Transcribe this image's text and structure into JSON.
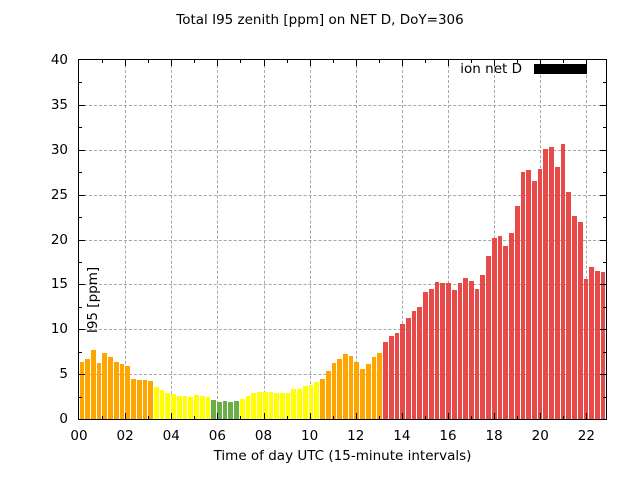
{
  "title": "Total I95 zenith [ppm] on NET D, DoY=306",
  "legend": {
    "label": "ion net D",
    "swatch_color": "#000000"
  },
  "axes": {
    "xlabel": "Time of day UTC (15-minute intervals)",
    "ylabel": "I95 [ppm]",
    "x_tick_labels": [
      "00",
      "02",
      "04",
      "06",
      "08",
      "10",
      "12",
      "14",
      "16",
      "18",
      "20",
      "22"
    ],
    "y_tick_labels": [
      "0",
      "5",
      "10",
      "15",
      "20",
      "25",
      "30",
      "35",
      "40"
    ]
  },
  "chart_data": {
    "type": "bar",
    "title": "Total I95 zenith [ppm] on NET D, DoY=306",
    "xlabel": "Time of day UTC (15-minute intervals)",
    "ylabel": "I95 [ppm]",
    "ylim": [
      0,
      40
    ],
    "y_tick_step": 5,
    "x_hours_shown": [
      0,
      2,
      4,
      6,
      8,
      10,
      12,
      14,
      16,
      18,
      20,
      22
    ],
    "x_interval_minutes": 15,
    "grid": "dashed-gray",
    "legend_position": "top-right-inside",
    "legend_entries": [
      "ion net D"
    ],
    "times": [
      "00:00",
      "00:15",
      "00:30",
      "00:45",
      "01:00",
      "01:15",
      "01:30",
      "01:45",
      "02:00",
      "02:15",
      "02:30",
      "02:45",
      "03:00",
      "03:15",
      "03:30",
      "03:45",
      "04:00",
      "04:15",
      "04:30",
      "04:45",
      "05:00",
      "05:15",
      "05:30",
      "05:45",
      "06:00",
      "06:15",
      "06:30",
      "06:45",
      "07:00",
      "07:15",
      "07:30",
      "07:45",
      "08:00",
      "08:15",
      "08:30",
      "08:45",
      "09:00",
      "09:15",
      "09:30",
      "09:45",
      "10:00",
      "10:15",
      "10:30",
      "10:45",
      "11:00",
      "11:15",
      "11:30",
      "11:45",
      "12:00",
      "12:15",
      "12:30",
      "12:45",
      "13:00",
      "13:15",
      "13:30",
      "13:45",
      "14:00",
      "14:15",
      "14:30",
      "14:45",
      "15:00",
      "15:15",
      "15:30",
      "15:45",
      "16:00",
      "16:15",
      "16:30",
      "16:45",
      "17:00",
      "17:15",
      "17:30",
      "17:45",
      "18:00",
      "18:15",
      "18:30",
      "18:45",
      "19:00",
      "19:15",
      "19:30",
      "19:45",
      "20:00",
      "20:15",
      "20:30",
      "20:45",
      "21:00",
      "21:15",
      "21:30",
      "21:45",
      "22:00",
      "22:15",
      "22:30",
      "22:45"
    ],
    "values": [
      6.3,
      6.7,
      7.7,
      6.2,
      7.3,
      6.9,
      6.4,
      6.1,
      5.9,
      4.5,
      4.4,
      4.3,
      4.2,
      3.6,
      3.2,
      2.9,
      2.8,
      2.6,
      2.6,
      2.4,
      2.7,
      2.6,
      2.4,
      2.1,
      1.9,
      2.0,
      1.9,
      2.0,
      2.2,
      2.6,
      2.9,
      3.0,
      3.0,
      3.0,
      2.9,
      2.9,
      2.9,
      3.3,
      3.4,
      3.7,
      3.8,
      4.1,
      4.5,
      5.3,
      6.2,
      6.7,
      7.2,
      7.0,
      6.3,
      5.6,
      6.1,
      6.9,
      7.3,
      8.6,
      9.2,
      9.6,
      10.6,
      11.2,
      12.0,
      12.5,
      14.2,
      14.5,
      15.3,
      15.1,
      15.1,
      14.4,
      15.2,
      15.7,
      15.4,
      14.5,
      16.1,
      18.2,
      20.2,
      20.4,
      19.3,
      20.7,
      23.7,
      27.5,
      27.7,
      26.5,
      27.9,
      30.1,
      30.3,
      28.1,
      30.6,
      25.3,
      22.6,
      21.9,
      15.6,
      16.9,
      16.5,
      16.4
    ],
    "bar_colors": [
      "orange",
      "orange",
      "orange",
      "orange",
      "orange",
      "orange",
      "orange",
      "orange",
      "orange",
      "orange",
      "orange",
      "orange",
      "orange",
      "yellow",
      "yellow",
      "yellow",
      "yellow",
      "yellow",
      "yellow",
      "yellow",
      "yellow",
      "yellow",
      "yellow",
      "green",
      "green",
      "green",
      "green",
      "green",
      "yellow",
      "yellow",
      "yellow",
      "yellow",
      "yellow",
      "yellow",
      "yellow",
      "yellow",
      "yellow",
      "yellow",
      "yellow",
      "yellow",
      "yellow",
      "yellow",
      "orange",
      "orange",
      "orange",
      "orange",
      "orange",
      "orange",
      "orange",
      "orange",
      "orange",
      "orange",
      "orange",
      "red",
      "red",
      "red",
      "red",
      "red",
      "red",
      "red",
      "red",
      "red",
      "red",
      "red",
      "red",
      "red",
      "red",
      "red",
      "red",
      "red",
      "red",
      "red",
      "red",
      "red",
      "red",
      "red",
      "red",
      "red",
      "red",
      "red",
      "red",
      "red",
      "red",
      "red",
      "red",
      "red",
      "red",
      "red",
      "red",
      "red",
      "red",
      "red"
    ],
    "palette": {
      "orange": "#FFA500",
      "yellow": "#FFFF00",
      "green": "#6BAE45",
      "red": "#E84949",
      "grid": "#A6A6A6",
      "axis": "#000000",
      "background": "#FFFFFF"
    }
  }
}
